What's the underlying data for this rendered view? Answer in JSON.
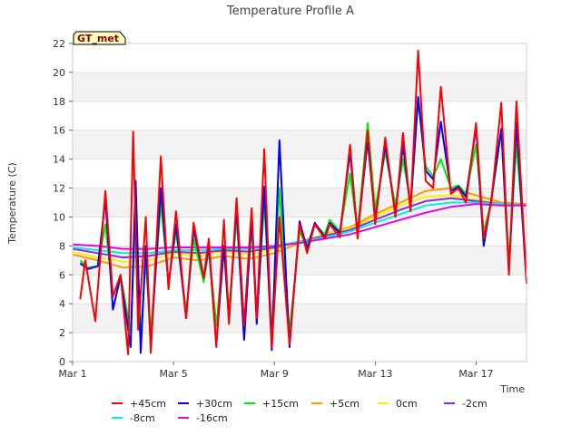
{
  "chart_data": {
    "type": "line",
    "title": "Temperature Profile A",
    "xlabel": "Time",
    "ylabel": "Temperature (C)",
    "badge": "GT_met",
    "xlim": [
      0,
      18
    ],
    "ylim": [
      0,
      22
    ],
    "x_ticks": [
      {
        "value": 0,
        "label": "Mar 1"
      },
      {
        "value": 4,
        "label": "Mar 5"
      },
      {
        "value": 8,
        "label": "Mar 9"
      },
      {
        "value": 12,
        "label": "Mar 13"
      },
      {
        "value": 16,
        "label": "Mar 17"
      }
    ],
    "y_ticks": [
      0,
      2,
      4,
      6,
      8,
      10,
      12,
      14,
      16,
      18,
      20,
      22
    ],
    "grid": "horizontal banded",
    "legend_position": "bottom",
    "series": [
      {
        "name": "+45cm",
        "color": "#ff0000",
        "x": [
          0.3,
          0.5,
          0.9,
          1.3,
          1.6,
          1.9,
          2.2,
          2.4,
          2.6,
          2.9,
          3.1,
          3.5,
          3.8,
          4.1,
          4.5,
          4.8,
          5.2,
          5.4,
          5.7,
          6.0,
          6.2,
          6.5,
          6.8,
          7.1,
          7.3,
          7.6,
          7.9,
          8.2,
          8.6,
          9.0,
          9.3,
          9.6,
          10.0,
          10.2,
          10.6,
          11.0,
          11.3,
          11.7,
          12.0,
          12.4,
          12.8,
          13.1,
          13.4,
          13.7,
          14.0,
          14.3,
          14.6,
          15.0,
          15.3,
          15.6,
          16.0,
          16.3,
          16.6,
          17.0,
          17.3,
          17.6,
          18.0
        ],
        "y": [
          4.3,
          7.0,
          2.8,
          11.8,
          4.5,
          6.0,
          0.5,
          15.9,
          2.2,
          10.0,
          0.6,
          14.2,
          5.0,
          10.4,
          3.0,
          9.6,
          5.8,
          8.5,
          1.0,
          9.8,
          2.6,
          11.3,
          2.5,
          10.6,
          3.0,
          14.7,
          1.0,
          10.0,
          1.2,
          9.5,
          7.5,
          9.5,
          8.5,
          9.5,
          8.6,
          15.0,
          8.5,
          16.0,
          9.5,
          15.5,
          10.0,
          15.8,
          10.4,
          21.5,
          12.5,
          12.0,
          19.0,
          11.6,
          12.0,
          11.0,
          16.5,
          8.5,
          11.0,
          17.9,
          6.0,
          18.0,
          5.5
        ]
      },
      {
        "name": "+30cm",
        "color": "#0000ff",
        "x": [
          0.3,
          0.6,
          1.0,
          1.3,
          1.6,
          1.9,
          2.3,
          2.5,
          2.7,
          2.9,
          3.1,
          3.5,
          3.8,
          4.1,
          4.5,
          4.8,
          5.2,
          5.4,
          5.7,
          6.0,
          6.2,
          6.5,
          6.8,
          7.1,
          7.3,
          7.6,
          7.9,
          8.2,
          8.6,
          9.0,
          9.3,
          9.6,
          10.0,
          10.2,
          10.6,
          11.0,
          11.3,
          11.7,
          12.0,
          12.4,
          12.8,
          13.1,
          13.4,
          13.7,
          14.0,
          14.3,
          14.6,
          15.0,
          15.3,
          15.6,
          16.0,
          16.3,
          16.6,
          17.0,
          17.3,
          17.6,
          18.0
        ],
        "y": [
          6.8,
          6.4,
          6.6,
          11.2,
          3.6,
          5.9,
          1.0,
          12.5,
          0.6,
          8.0,
          1.0,
          12.0,
          5.3,
          9.5,
          3.0,
          9.2,
          5.8,
          8.0,
          1.2,
          8.0,
          2.8,
          10.7,
          1.5,
          10.0,
          2.6,
          12.1,
          0.8,
          15.3,
          1.0,
          9.7,
          7.8,
          9.6,
          8.6,
          9.6,
          8.9,
          14.5,
          8.8,
          15.3,
          9.8,
          15.0,
          10.2,
          15.0,
          10.6,
          18.3,
          13.2,
          12.6,
          16.6,
          11.8,
          12.1,
          11.4,
          16.2,
          8.0,
          11.2,
          16.1,
          6.2,
          16.5,
          5.4
        ]
      },
      {
        "name": "+15cm",
        "color": "#00ee00",
        "x": [
          0.3,
          0.6,
          1.0,
          1.3,
          1.6,
          1.9,
          2.3,
          2.5,
          2.7,
          2.9,
          3.1,
          3.5,
          3.8,
          4.1,
          4.5,
          4.8,
          5.2,
          5.4,
          5.7,
          6.0,
          6.2,
          6.5,
          6.8,
          7.1,
          7.3,
          7.6,
          7.9,
          8.2,
          8.6,
          9.0,
          9.3,
          9.6,
          10.0,
          10.2,
          10.6,
          11.0,
          11.3,
          11.7,
          12.0,
          12.4,
          12.8,
          13.1,
          13.4,
          13.7,
          14.0,
          14.3,
          14.6,
          15.0,
          15.3,
          15.6,
          16.0,
          16.3,
          16.6,
          17.0,
          17.3,
          17.6,
          18.0
        ],
        "y": [
          7.0,
          6.5,
          6.6,
          9.5,
          4.5,
          6.0,
          2.0,
          10.0,
          1.8,
          7.0,
          2.0,
          11.0,
          5.5,
          9.0,
          3.5,
          8.5,
          5.5,
          7.8,
          2.5,
          8.0,
          3.5,
          10.0,
          2.0,
          9.5,
          3.0,
          11.0,
          2.0,
          12.0,
          2.0,
          9.0,
          8.0,
          9.5,
          8.8,
          9.8,
          9.0,
          13.0,
          9.0,
          16.5,
          10.5,
          14.5,
          10.8,
          14.0,
          11.0,
          18.0,
          13.5,
          12.8,
          14.0,
          12.0,
          12.2,
          11.6,
          15.0,
          9.0,
          11.0,
          16.0,
          7.0,
          15.0,
          6.5
        ]
      },
      {
        "name": "+5cm",
        "color": "#ff9900",
        "x": [
          0,
          1,
          2,
          3,
          4,
          5,
          6,
          7,
          8,
          9,
          10,
          11,
          12,
          13,
          14,
          15,
          16,
          17,
          18
        ],
        "y": [
          7.4,
          7.0,
          6.5,
          6.6,
          7.2,
          7.0,
          7.3,
          7.1,
          7.5,
          8.2,
          8.8,
          9.3,
          10.2,
          11.0,
          11.8,
          12.0,
          11.5,
          11.0,
          10.9
        ]
      },
      {
        "name": "0cm",
        "color": "#ffee00",
        "x": [
          0,
          1,
          2,
          3,
          4,
          5,
          6,
          7,
          8,
          9,
          10,
          11,
          12,
          13,
          14,
          15,
          16,
          17,
          18
        ],
        "y": [
          7.6,
          7.2,
          6.9,
          7.0,
          7.5,
          7.3,
          7.6,
          7.4,
          7.8,
          8.3,
          8.8,
          9.2,
          10.0,
          10.8,
          11.4,
          11.5,
          11.2,
          10.9,
          10.8
        ]
      },
      {
        "name": "-2cm",
        "color": "#8a2be2",
        "x": [
          0,
          1,
          2,
          3,
          4,
          5,
          6,
          7,
          8,
          9,
          10,
          11,
          12,
          13,
          14,
          15,
          16,
          17,
          18
        ],
        "y": [
          7.8,
          7.5,
          7.2,
          7.3,
          7.6,
          7.5,
          7.7,
          7.6,
          7.9,
          8.3,
          8.7,
          9.1,
          9.8,
          10.5,
          11.1,
          11.3,
          11.1,
          10.9,
          10.8
        ]
      },
      {
        "name": "-8cm",
        "color": "#00eeee",
        "x": [
          0,
          1,
          2,
          3,
          4,
          5,
          6,
          7,
          8,
          9,
          10,
          11,
          12,
          13,
          14,
          15,
          16,
          17,
          18
        ],
        "y": [
          7.9,
          7.7,
          7.5,
          7.5,
          7.7,
          7.7,
          7.8,
          7.8,
          8.0,
          8.3,
          8.6,
          9.0,
          9.6,
          10.2,
          10.8,
          11.0,
          11.0,
          10.9,
          10.8
        ]
      },
      {
        "name": "-16cm",
        "color": "#ee00ee",
        "x": [
          0,
          1,
          2,
          3,
          4,
          5,
          6,
          7,
          8,
          9,
          10,
          11,
          12,
          13,
          14,
          15,
          16,
          17,
          18
        ],
        "y": [
          8.1,
          8.0,
          7.8,
          7.8,
          7.9,
          7.9,
          7.9,
          7.9,
          8.0,
          8.2,
          8.5,
          8.8,
          9.3,
          9.8,
          10.3,
          10.7,
          10.9,
          10.8,
          10.8
        ]
      }
    ]
  }
}
